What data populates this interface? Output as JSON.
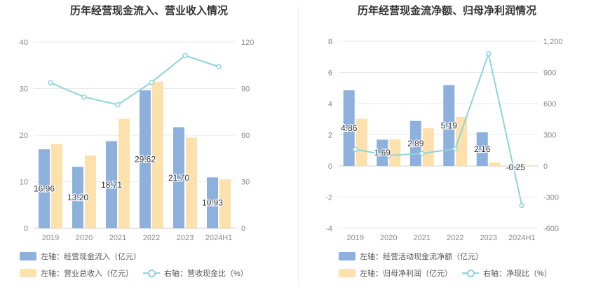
{
  "colors": {
    "bar1": "#8eb0dc",
    "bar2": "#fde1ad",
    "line": "#8dd4dd",
    "grid": "#e9e9e9",
    "axis_text": "#888888"
  },
  "chart_data": [
    {
      "type": "bar",
      "title": "历年经营现金流入、营业收入情况",
      "categories": [
        "2019",
        "2020",
        "2021",
        "2022",
        "2023",
        "2024H1"
      ],
      "left_axis": {
        "ylim": [
          0,
          40
        ],
        "ticks": [
          0,
          10,
          20,
          30,
          40
        ]
      },
      "right_axis": {
        "ylim": [
          0,
          120
        ],
        "ticks": [
          0,
          30,
          60,
          90,
          120
        ]
      },
      "series": [
        {
          "name": "左轴：经营现金流入（亿元）",
          "kind": "bar",
          "axis": "left",
          "values": [
            16.96,
            13.2,
            18.71,
            29.62,
            21.7,
            10.93
          ],
          "labels": [
            "16.96",
            "13.20",
            "18.71",
            "29.62",
            "21.70",
            "10.93"
          ]
        },
        {
          "name": "左轴：营业总收入（亿元）",
          "kind": "bar",
          "axis": "left",
          "values": [
            18.1,
            15.6,
            23.5,
            31.5,
            19.5,
            10.5
          ]
        },
        {
          "name": "右轴：营收现金比（%）",
          "kind": "line",
          "axis": "right",
          "values": [
            93.8,
            84.6,
            79.6,
            94.0,
            111.3,
            104.1
          ]
        }
      ]
    },
    {
      "type": "bar",
      "title": "历年经营现金流净额、归母净利润情况",
      "categories": [
        "2019",
        "2020",
        "2021",
        "2022",
        "2023",
        "2024H1"
      ],
      "left_axis": {
        "ylim": [
          -4,
          8
        ],
        "ticks": [
          -4,
          -2,
          0,
          2,
          4,
          6,
          8
        ]
      },
      "right_axis": {
        "ylim": [
          -600,
          1200
        ],
        "ticks": [
          -600,
          -300,
          0,
          300,
          600,
          900,
          1200
        ],
        "tick_labels": [
          "-600",
          "-300",
          "0",
          "300",
          "600",
          "900",
          "1,200"
        ]
      },
      "series": [
        {
          "name": "左轴：经营活动现金流净额（亿元）",
          "kind": "bar",
          "axis": "left",
          "values": [
            4.86,
            1.69,
            2.89,
            5.19,
            2.16,
            -0.25
          ],
          "labels": [
            "4.86",
            "1.69",
            "2.89",
            "5.19",
            "2.16",
            "-0.25"
          ]
        },
        {
          "name": "左轴：归母净利润（亿元）",
          "kind": "bar",
          "axis": "left",
          "values": [
            3.03,
            1.7,
            2.42,
            3.15,
            0.22,
            0.05
          ]
        },
        {
          "name": "右轴：净现比（%）",
          "kind": "line",
          "axis": "right",
          "values": [
            160,
            100,
            120,
            165,
            1080,
            -380
          ]
        }
      ]
    }
  ]
}
